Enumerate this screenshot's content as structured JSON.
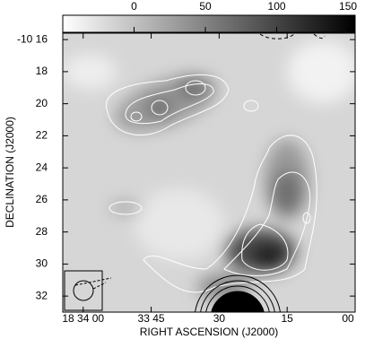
{
  "chart_data": {
    "type": "image",
    "xlabel": "RIGHT ASCENSION (J2000)",
    "ylabel": "DECLINATION (J2000)",
    "xlim": [
      64.5,
      0
    ],
    "xticks": [
      {
        "value": 60,
        "label": "18 34 00"
      },
      {
        "value": 45,
        "label": "33 45"
      },
      30,
      15,
      {
        "value": 0,
        "label": "00"
      }
    ],
    "ylim": [
      15.6,
      33.0
    ],
    "y_inverted": true,
    "yticks": [
      {
        "value": 16,
        "label": "-10 16"
      },
      18,
      20,
      22,
      24,
      26,
      28,
      30,
      32
    ],
    "colorbar_lim": [
      -50,
      155
    ],
    "colorbar_ticks": [
      0,
      50,
      100,
      150
    ]
  }
}
